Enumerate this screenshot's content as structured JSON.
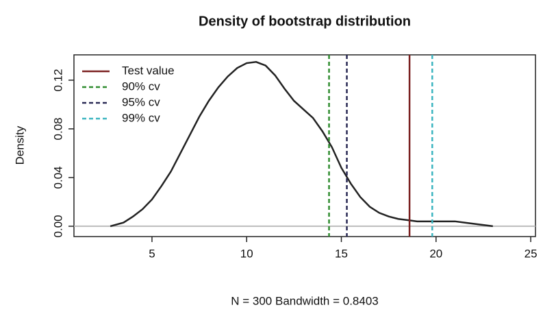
{
  "chart_data": {
    "type": "density",
    "title": "Density of bootstrap distribution",
    "xlabel": "N = 300   Bandwidth = 0.8403",
    "ylabel": "Density",
    "x": [
      2.8,
      3.5,
      4,
      4.5,
      5,
      5.5,
      6,
      6.5,
      7,
      7.5,
      8,
      8.5,
      9,
      9.5,
      10,
      10.5,
      11,
      11.5,
      12,
      12.5,
      13,
      13.5,
      14,
      14.5,
      15,
      15.5,
      16,
      16.5,
      17,
      17.5,
      18,
      18.5,
      19,
      20,
      21,
      21.5,
      22,
      23
    ],
    "values": [
      0.0,
      0.003,
      0.008,
      0.014,
      0.022,
      0.033,
      0.045,
      0.06,
      0.075,
      0.09,
      0.103,
      0.114,
      0.123,
      0.13,
      0.134,
      0.135,
      0.132,
      0.124,
      0.113,
      0.103,
      0.096,
      0.089,
      0.078,
      0.065,
      0.048,
      0.035,
      0.024,
      0.016,
      0.011,
      0.008,
      0.006,
      0.005,
      0.004,
      0.004,
      0.004,
      0.003,
      0.002,
      0.0
    ],
    "color": "#222222",
    "baseline_color": "#bbbbbb",
    "vlines": [
      {
        "name": "Test value",
        "value": 18.6,
        "color": "#7a1f1f",
        "dashed": false
      },
      {
        "name": "90% cv",
        "value": 14.35,
        "color": "#2e8b2e",
        "dashed": true
      },
      {
        "name": "95% cv",
        "value": 15.29,
        "color": "#2a2a55",
        "dashed": true
      },
      {
        "name": "99% cv",
        "value": 19.8,
        "color": "#3bb5c0",
        "dashed": true
      }
    ],
    "legend": "top-left",
    "xlim": [
      0.88,
      25.25
    ],
    "ylim": [
      -0.0085,
      0.1408
    ],
    "xticks": [
      5,
      10,
      15,
      20,
      25
    ],
    "yticks": [
      {
        "value": 0,
        "label": "0.00"
      },
      {
        "value": 0.04,
        "label": "0.04"
      },
      {
        "value": 0.08,
        "label": "0.08"
      },
      {
        "value": 0.12,
        "label": "0.12"
      }
    ]
  }
}
